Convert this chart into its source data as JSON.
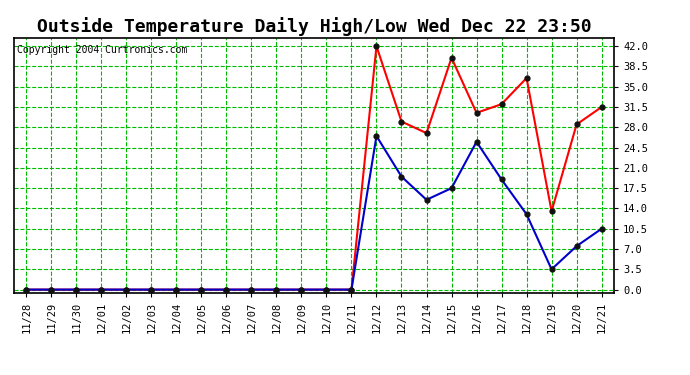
{
  "title": "Outside Temperature Daily High/Low Wed Dec 22 23:50",
  "copyright": "Copyright 2004 Curtronics.com",
  "x_labels": [
    "11/28",
    "11/29",
    "11/30",
    "12/01",
    "12/02",
    "12/03",
    "12/04",
    "12/05",
    "12/06",
    "12/07",
    "12/08",
    "12/09",
    "12/10",
    "12/11",
    "12/12",
    "12/13",
    "12/14",
    "12/15",
    "12/16",
    "12/17",
    "12/18",
    "12/19",
    "12/20",
    "12/21"
  ],
  "high_values": [
    0.0,
    0.0,
    0.0,
    0.0,
    0.0,
    0.0,
    0.0,
    0.0,
    0.0,
    0.0,
    0.0,
    0.0,
    0.0,
    0.0,
    42.0,
    29.0,
    27.0,
    40.0,
    30.5,
    32.0,
    36.5,
    13.5,
    28.5,
    31.5
  ],
  "low_values": [
    0.0,
    0.0,
    0.0,
    0.0,
    0.0,
    0.0,
    0.0,
    0.0,
    0.0,
    0.0,
    0.0,
    0.0,
    0.0,
    0.0,
    26.5,
    19.5,
    15.5,
    17.5,
    25.5,
    19.0,
    13.0,
    3.5,
    7.5,
    10.5
  ],
  "high_color": "#ff0000",
  "low_color": "#0000cc",
  "bg_color": "#ffffff",
  "grid_color": "#00bb00",
  "title_fontsize": 13,
  "yticks": [
    0.0,
    3.5,
    7.0,
    10.5,
    14.0,
    17.5,
    21.0,
    24.5,
    28.0,
    31.5,
    35.0,
    38.5,
    42.0
  ],
  "ylim": [
    -0.5,
    43.5
  ],
  "marker_color": "#111111",
  "marker_size": 3.5,
  "line_width": 1.5,
  "tick_fontsize": 7.5,
  "copyright_fontsize": 7
}
